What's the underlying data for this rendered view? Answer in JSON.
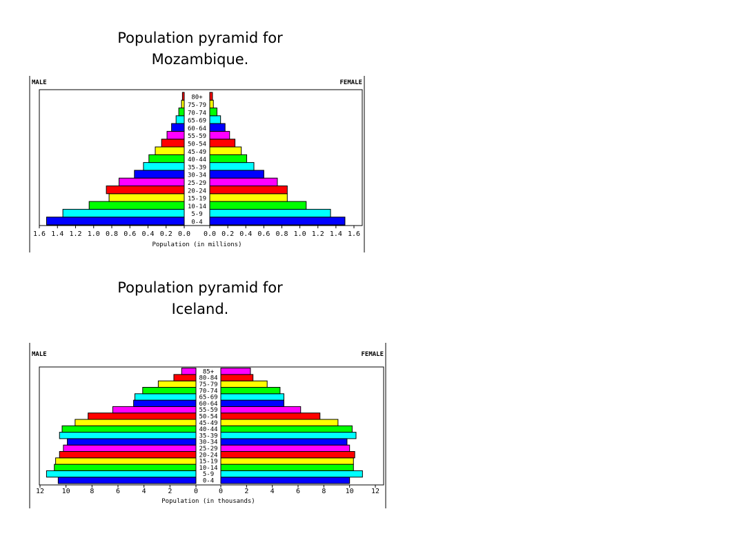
{
  "slide": {
    "title1_line1": "Population pyramid for",
    "title1_line2": "Mozambique.",
    "title2_line1": "Population pyramid for",
    "title2_line2": "Iceland."
  },
  "chart_data": [
    {
      "type": "bar",
      "orientation": "horizontal-pyramid",
      "left_label": "MALE",
      "right_label": "FEMALE",
      "xlabel": "Population (in millions)",
      "categories": [
        "0-4",
        "5-9",
        "10-14",
        "15-19",
        "20-24",
        "25-29",
        "30-34",
        "35-39",
        "40-44",
        "45-49",
        "50-54",
        "55-59",
        "60-64",
        "65-69",
        "70-74",
        "75-79",
        "80+"
      ],
      "series": [
        {
          "name": "MALE",
          "values": [
            1.52,
            1.34,
            1.05,
            0.83,
            0.86,
            0.72,
            0.55,
            0.45,
            0.39,
            0.32,
            0.25,
            0.19,
            0.14,
            0.09,
            0.06,
            0.03,
            0.02
          ]
        },
        {
          "name": "FEMALE",
          "values": [
            1.5,
            1.34,
            1.07,
            0.86,
            0.86,
            0.75,
            0.6,
            0.49,
            0.41,
            0.35,
            0.28,
            0.22,
            0.17,
            0.12,
            0.08,
            0.04,
            0.03
          ]
        }
      ],
      "xlim": [
        0,
        1.6
      ],
      "left_ticks": [
        "1.6",
        "1.4",
        "1.2",
        "1.0",
        "0.8",
        "0.6",
        "0.4",
        "0.2",
        "0.0"
      ],
      "right_ticks": [
        "0.0",
        "0.2",
        "0.4",
        "0.6",
        "0.8",
        "1.0",
        "1.2",
        "1.4",
        "1.6"
      ],
      "colors": [
        "#0000ff",
        "#00ffff",
        "#00ff00",
        "#ffff00",
        "#ff0000",
        "#ff00ff",
        "#0000ff",
        "#00ffff",
        "#00ff00",
        "#ffff00",
        "#ff0000",
        "#ff00ff",
        "#0000ff",
        "#00ffff",
        "#00ff00",
        "#ffff00",
        "#ff0000"
      ]
    },
    {
      "type": "bar",
      "orientation": "horizontal-pyramid",
      "left_label": "MALE",
      "right_label": "FEMALE",
      "xlabel": "Population (in thousands)",
      "categories": [
        "0-4",
        "5-9",
        "10-14",
        "15-19",
        "20-24",
        "25-29",
        "30-34",
        "35-39",
        "40-44",
        "45-49",
        "50-54",
        "55-59",
        "60-64",
        "65-69",
        "70-74",
        "75-79",
        "80-84",
        "85+"
      ],
      "series": [
        {
          "name": "MALE",
          "values": [
            10.6,
            11.5,
            10.9,
            10.8,
            10.5,
            10.2,
            9.9,
            10.5,
            10.3,
            9.3,
            8.3,
            6.4,
            4.8,
            4.7,
            4.1,
            2.9,
            1.7,
            1.1
          ]
        },
        {
          "name": "FEMALE",
          "values": [
            10.0,
            11.0,
            10.3,
            10.3,
            10.4,
            10.0,
            9.8,
            10.5,
            10.2,
            9.1,
            7.7,
            6.2,
            4.9,
            4.9,
            4.6,
            3.6,
            2.5,
            2.3
          ]
        }
      ],
      "xlim": [
        0,
        12
      ],
      "left_ticks": [
        "12",
        "10",
        "8",
        "6",
        "4",
        "2",
        "0"
      ],
      "right_ticks": [
        "0",
        "2",
        "4",
        "6",
        "8",
        "10",
        "12"
      ],
      "colors": [
        "#0000ff",
        "#00ffff",
        "#00ff00",
        "#ffff00",
        "#ff0000",
        "#ff00ff",
        "#0000ff",
        "#00ffff",
        "#00ff00",
        "#ffff00",
        "#ff0000",
        "#ff00ff",
        "#0000ff",
        "#00ffff",
        "#00ff00",
        "#ffff00",
        "#ff0000",
        "#ff00ff"
      ]
    }
  ]
}
